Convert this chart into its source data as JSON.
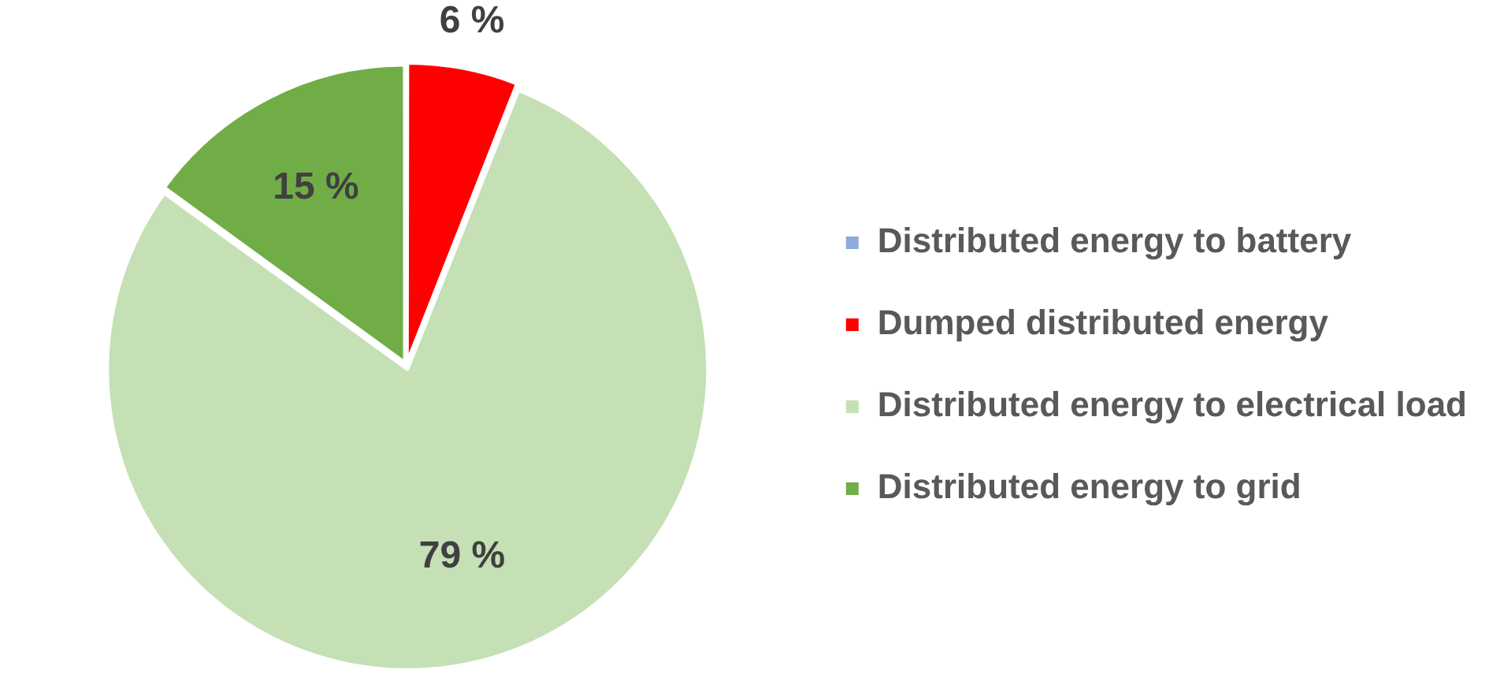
{
  "chart_data": {
    "type": "pie",
    "categories": [
      "Distributed energy to battery",
      "Dumped distributed energy",
      "Distributed energy to electrical load",
      "Distributed energy to grid"
    ],
    "values": [
      0,
      6,
      79,
      15
    ],
    "colors": [
      "#8faadc",
      "#ff0000",
      "#c5e0b4",
      "#70ad47"
    ],
    "value_labels": [
      null,
      "6 %",
      "79 %",
      "15 %"
    ],
    "legend": "right"
  }
}
